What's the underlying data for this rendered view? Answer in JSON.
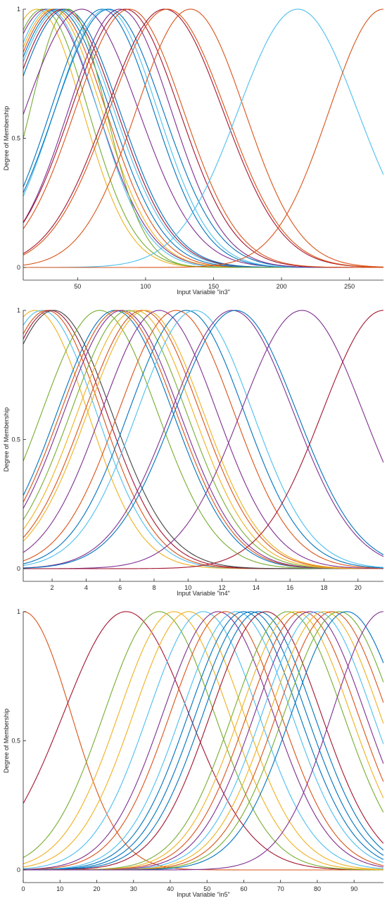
{
  "palette": [
    "#0072BD",
    "#D95319",
    "#EDB120",
    "#7E2F8E",
    "#77AC30",
    "#4DBEEE",
    "#A2142F"
  ],
  "chart_data": [
    {
      "type": "line",
      "xlabel": "Input Variable \"in3\"",
      "ylabel": "Degree of Membership",
      "xlim": [
        10,
        275
      ],
      "ylim": [
        0,
        1
      ],
      "xticks": [
        50,
        100,
        150,
        200,
        250
      ],
      "xtick_labels": [
        "50",
        "100",
        "150",
        "200",
        "250"
      ],
      "yticks": [
        0,
        0.5,
        1
      ],
      "ytick_labels": [
        "0",
        "0.5",
        "1"
      ],
      "grid": false,
      "curve_shape": "gaussian",
      "series": [
        {
          "center": 20,
          "sigma": 34,
          "color": "#EDB120"
        },
        {
          "center": 24,
          "sigma": 34,
          "color": "#77AC30"
        },
        {
          "center": 27,
          "sigma": 38,
          "color": "#7E2F8E"
        },
        {
          "center": 29,
          "sigma": 36,
          "color": "#4DBEEE"
        },
        {
          "center": 31,
          "sigma": 37,
          "color": "#EDB120"
        },
        {
          "center": 33,
          "sigma": 38,
          "color": "#D95319"
        },
        {
          "center": 35,
          "sigma": 39,
          "color": "#0072BD"
        },
        {
          "center": 37,
          "sigma": 40,
          "color": "#4DBEEE"
        },
        {
          "center": 39,
          "sigma": 40,
          "color": "#A2142F"
        },
        {
          "center": 41,
          "sigma": 40,
          "color": "#0072BD"
        },
        {
          "center": 43,
          "sigma": 28,
          "color": "#77AC30"
        },
        {
          "center": 53,
          "sigma": 42,
          "color": "#7E2F8E"
        },
        {
          "center": 68,
          "sigma": 38,
          "color": "#0072BD"
        },
        {
          "center": 71,
          "sigma": 38,
          "color": "#4DBEEE"
        },
        {
          "center": 73,
          "sigma": 40,
          "color": "#0072BD"
        },
        {
          "center": 81,
          "sigma": 38,
          "color": "#7E2F8E"
        },
        {
          "center": 85,
          "sigma": 40,
          "color": "#A2142F"
        },
        {
          "center": 88,
          "sigma": 40,
          "color": "#D95319"
        },
        {
          "center": 114,
          "sigma": 43,
          "color": "#A2142F"
        },
        {
          "center": 116,
          "sigma": 43,
          "color": "#D95319"
        },
        {
          "center": 133,
          "sigma": 40,
          "color": "#D95319"
        },
        {
          "center": 212,
          "sigma": 44,
          "color": "#4DBEEE"
        },
        {
          "center": 275,
          "sigma": 40,
          "color": "#D95319"
        }
      ]
    },
    {
      "type": "line",
      "xlabel": "Input Variable \"in4\"",
      "ylabel": "Degree of Membership",
      "xlim": [
        0.3,
        21.5
      ],
      "ylim": [
        0,
        1
      ],
      "xticks": [
        2,
        4,
        6,
        8,
        10,
        12,
        14,
        16,
        18,
        20
      ],
      "xtick_labels": [
        "2",
        "4",
        "6",
        "8",
        "10",
        "12",
        "14",
        "16",
        "18",
        "20"
      ],
      "yticks": [
        0,
        0.5,
        1
      ],
      "ytick_labels": [
        "0",
        "0.5",
        "1"
      ],
      "grid": false,
      "curve_shape": "gaussian",
      "series": [
        {
          "center": 1.0,
          "sigma": 3.1,
          "color": "#EDB120"
        },
        {
          "center": 1.4,
          "sigma": 3.2,
          "color": "#4DBEEE"
        },
        {
          "center": 1.7,
          "sigma": 3.2,
          "color": "#D95319"
        },
        {
          "center": 1.9,
          "sigma": 3.3,
          "color": "#A2142F"
        },
        {
          "center": 2.1,
          "sigma": 3.4,
          "color": "#404040"
        },
        {
          "center": 4.8,
          "sigma": 3.4,
          "color": "#77AC30"
        },
        {
          "center": 5.7,
          "sigma": 3.4,
          "color": "#0072BD"
        },
        {
          "center": 5.9,
          "sigma": 3.4,
          "color": "#D95319"
        },
        {
          "center": 6.1,
          "sigma": 3.4,
          "color": "#7E2F8E"
        },
        {
          "center": 6.5,
          "sigma": 3.4,
          "color": "#77AC30"
        },
        {
          "center": 6.9,
          "sigma": 3.4,
          "color": "#EDB120"
        },
        {
          "center": 7.3,
          "sigma": 3.4,
          "color": "#D95319"
        },
        {
          "center": 7.5,
          "sigma": 3.4,
          "color": "#EDB120"
        },
        {
          "center": 8.3,
          "sigma": 3.4,
          "color": "#7E2F8E"
        },
        {
          "center": 9.3,
          "sigma": 3.4,
          "color": "#D95319"
        },
        {
          "center": 9.9,
          "sigma": 3.4,
          "color": "#0072BD"
        },
        {
          "center": 10.4,
          "sigma": 3.4,
          "color": "#4DBEEE"
        },
        {
          "center": 12.6,
          "sigma": 3.6,
          "color": "#7E2F8E"
        },
        {
          "center": 12.8,
          "sigma": 3.6,
          "color": "#0072BD"
        },
        {
          "center": 16.7,
          "sigma": 3.6,
          "color": "#7E2F8E"
        },
        {
          "center": 21.5,
          "sigma": 3.6,
          "color": "#A2142F"
        }
      ]
    },
    {
      "type": "line",
      "xlabel": "Input Variable \"in5\"",
      "ylabel": "Degree of Membership",
      "xlim": [
        0,
        98
      ],
      "ylim": [
        0,
        1
      ],
      "xticks": [
        0,
        10,
        20,
        30,
        40,
        50,
        60,
        70,
        80,
        90
      ],
      "xtick_labels": [
        "0",
        "10",
        "20",
        "30",
        "40",
        "50",
        "60",
        "70",
        "80",
        "90"
      ],
      "yticks": [
        0,
        0.5,
        1
      ],
      "ytick_labels": [
        "0",
        "0.5",
        "1"
      ],
      "grid": false,
      "curve_shape": "gaussian",
      "series": [
        {
          "center": 0,
          "sigma": 13,
          "color": "#D95319"
        },
        {
          "center": 28,
          "sigma": 17,
          "color": "#A2142F"
        },
        {
          "center": 37,
          "sigma": 15,
          "color": "#77AC30"
        },
        {
          "center": 41,
          "sigma": 15,
          "color": "#EDB120"
        },
        {
          "center": 45,
          "sigma": 15,
          "color": "#EDB120"
        },
        {
          "center": 49,
          "sigma": 15,
          "color": "#4DBEEE"
        },
        {
          "center": 53,
          "sigma": 15,
          "color": "#7E2F8E"
        },
        {
          "center": 55,
          "sigma": 15,
          "color": "#D95319"
        },
        {
          "center": 58,
          "sigma": 15,
          "color": "#4DBEEE"
        },
        {
          "center": 60,
          "sigma": 15,
          "color": "#0072BD"
        },
        {
          "center": 62,
          "sigma": 15,
          "color": "#0072BD"
        },
        {
          "center": 64,
          "sigma": 15,
          "color": "#0072BD"
        },
        {
          "center": 66,
          "sigma": 15,
          "color": "#A2142F"
        },
        {
          "center": 72,
          "sigma": 15,
          "color": "#77AC30"
        },
        {
          "center": 74,
          "sigma": 15,
          "color": "#EDB120"
        },
        {
          "center": 76,
          "sigma": 15,
          "color": "#D95319"
        },
        {
          "center": 78,
          "sigma": 15,
          "color": "#7E2F8E"
        },
        {
          "center": 80,
          "sigma": 15,
          "color": "#4DBEEE"
        },
        {
          "center": 82,
          "sigma": 15,
          "color": "#EDB120"
        },
        {
          "center": 84,
          "sigma": 15,
          "color": "#D95319"
        },
        {
          "center": 86,
          "sigma": 15,
          "color": "#77AC30"
        },
        {
          "center": 88,
          "sigma": 15,
          "color": "#0072BD"
        },
        {
          "center": 98,
          "sigma": 14,
          "color": "#7E2F8E"
        }
      ]
    }
  ]
}
